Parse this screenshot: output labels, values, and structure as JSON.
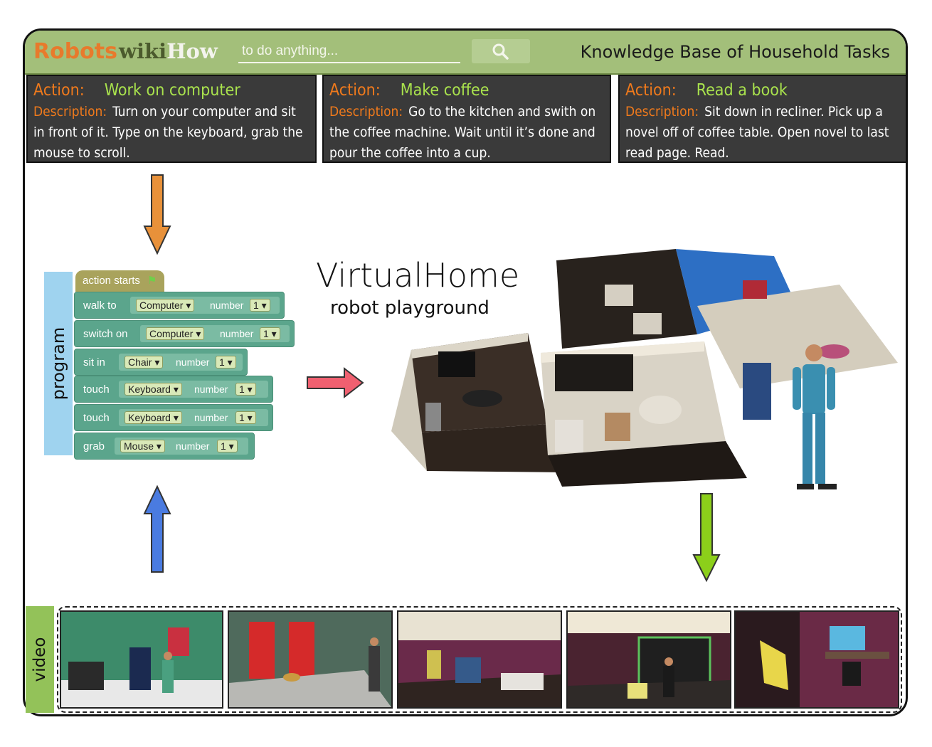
{
  "header": {
    "brand_robots": "Robots",
    "brand_wiki": "wiki",
    "brand_how": "How",
    "search_placeholder": "to do anything...",
    "kb_title": "Knowledge Base of Household Tasks"
  },
  "cards": [
    {
      "action_label": "Action:",
      "action": "Work on computer",
      "description_label": "Description:",
      "description": "Turn on your computer and sit in front of it. Type on the keyboard, grab the mouse to scroll."
    },
    {
      "action_label": "Action:",
      "action": "Make coffee",
      "description_label": "Description:",
      "description": "Go to the kitchen and swith on the coffee machine. Wait until it’s done and pour the coffee into a cup."
    },
    {
      "action_label": "Action:",
      "action": "Read a book",
      "description_label": "Description:",
      "description": "Sit down in recliner. Pick up a novel off of coffee table. Open novel to last read page. Read."
    }
  ],
  "program": {
    "label": "program",
    "start_block": "action starts",
    "number_label": "number",
    "steps": [
      {
        "verb": "walk to",
        "object": "Computer",
        "number": "1"
      },
      {
        "verb": "switch on",
        "object": "Computer",
        "number": "1"
      },
      {
        "verb": "sit in",
        "object": "Chair",
        "number": "1"
      },
      {
        "verb": "touch",
        "object": "Keyboard",
        "number": "1"
      },
      {
        "verb": "touch",
        "object": "Keyboard",
        "number": "1"
      },
      {
        "verb": "grab",
        "object": "Mouse",
        "number": "1"
      }
    ]
  },
  "virtualhome": {
    "title": "VirtualHome",
    "subtitle": "robot playground"
  },
  "video": {
    "label": "video",
    "frame_count": 5
  },
  "colors": {
    "header_green": "#a3bf7a",
    "arrow_orange": "#e8913a",
    "arrow_red": "#f06070",
    "arrow_blue": "#4a7be0",
    "arrow_lime": "#8ccf1a",
    "program_side": "#9fd3ef",
    "video_side": "#93c259"
  }
}
